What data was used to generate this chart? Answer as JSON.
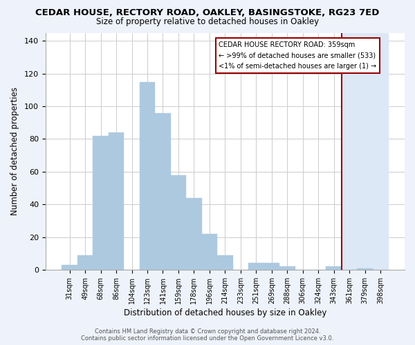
{
  "title": "CEDAR HOUSE, RECTORY ROAD, OAKLEY, BASINGSTOKE, RG23 7ED",
  "subtitle": "Size of property relative to detached houses in Oakley",
  "xlabel": "Distribution of detached houses by size in Oakley",
  "ylabel": "Number of detached properties",
  "footer": "Contains HM Land Registry data © Crown copyright and database right 2024.\nContains public sector information licensed under the Open Government Licence v3.0.",
  "categories": [
    "31sqm",
    "49sqm",
    "68sqm",
    "86sqm",
    "104sqm",
    "123sqm",
    "141sqm",
    "159sqm",
    "178sqm",
    "196sqm",
    "214sqm",
    "233sqm",
    "251sqm",
    "269sqm",
    "288sqm",
    "306sqm",
    "324sqm",
    "343sqm",
    "361sqm",
    "379sqm",
    "398sqm"
  ],
  "values": [
    3,
    9,
    82,
    84,
    0,
    115,
    96,
    58,
    44,
    22,
    9,
    0,
    4,
    4,
    2,
    0,
    0,
    2,
    0,
    1,
    0
  ],
  "bar_color": "#adc9e0",
  "highlight_color": "#dce8f5",
  "marker_index": 18,
  "marker_color": "#990000",
  "annotation_title": "CEDAR HOUSE RECTORY ROAD: 359sqm",
  "annotation_line2": "← >99% of detached houses are smaller (533)",
  "annotation_line3": "<1% of semi-detached houses are larger (1) →",
  "annotation_box_color": "#ffffff",
  "annotation_border_color": "#990000",
  "grid_color": "#cccccc",
  "background_color": "#eef2fa",
  "plot_background": "#ffffff",
  "ylim": [
    0,
    145
  ],
  "yticks": [
    0,
    20,
    40,
    60,
    80,
    100,
    120,
    140
  ]
}
